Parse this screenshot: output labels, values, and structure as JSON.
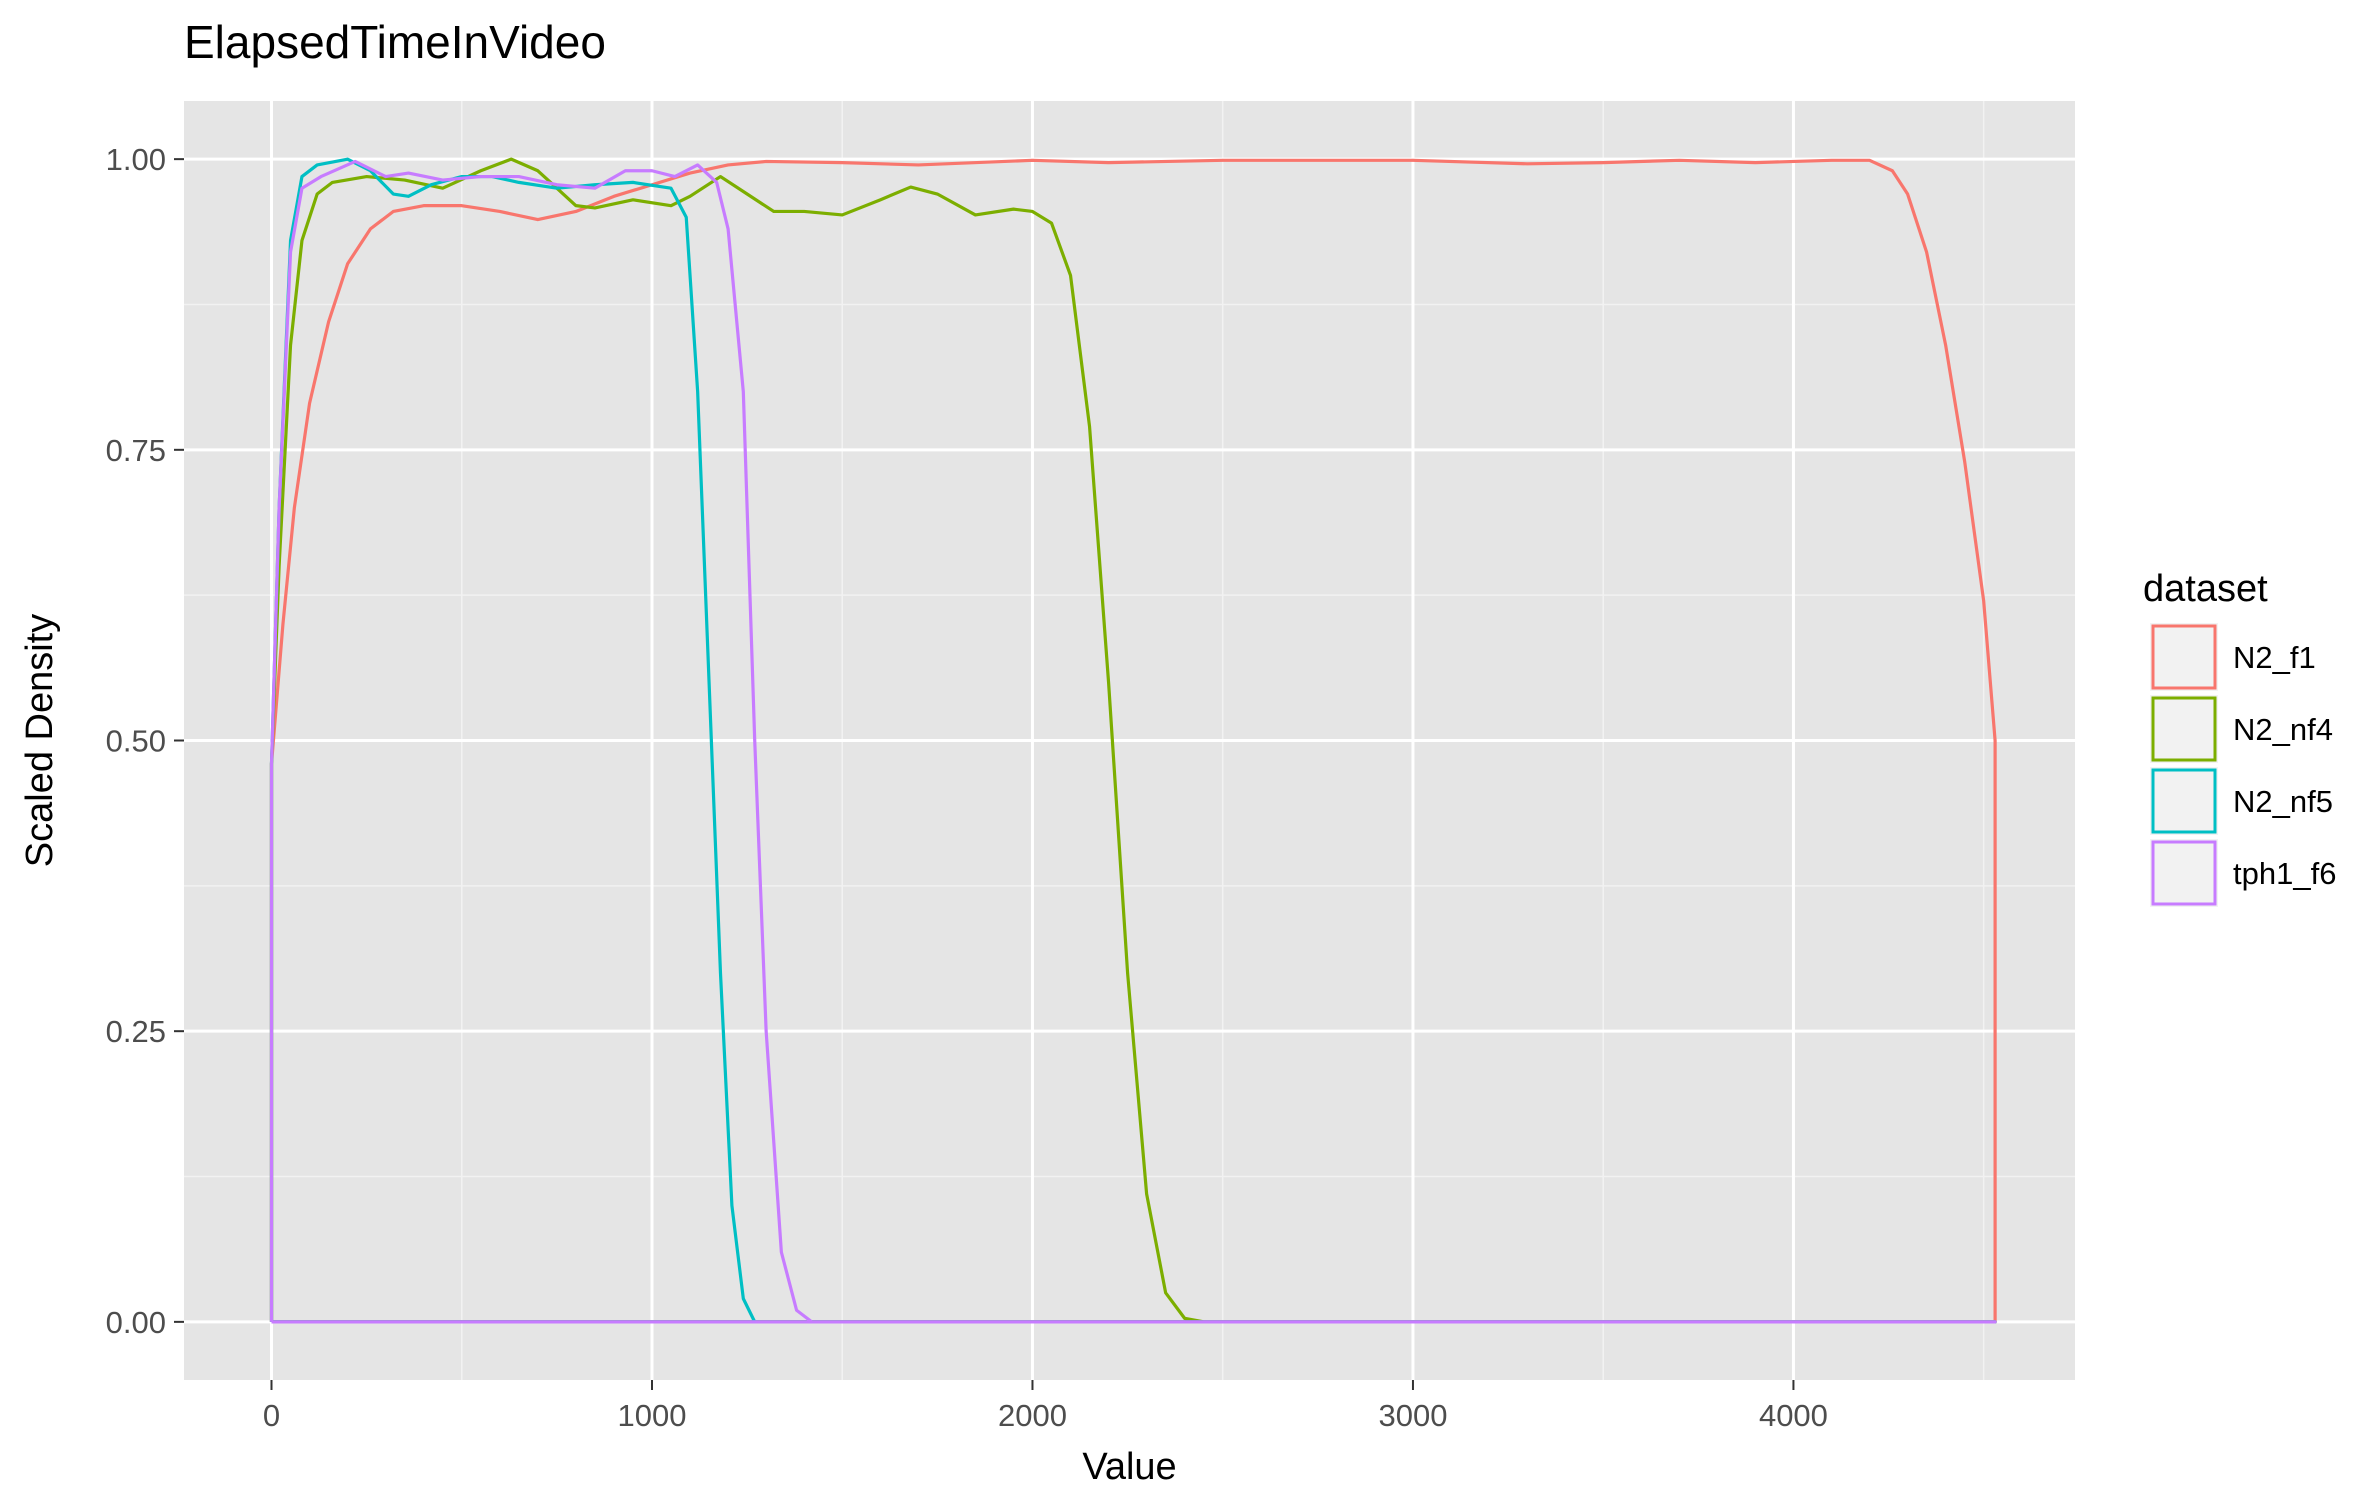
{
  "chart_data": {
    "type": "line",
    "title": "ElapsedTimeInVideo",
    "xlabel": "Value",
    "ylabel": "Scaled Density",
    "xlim": [
      -230,
      4740
    ],
    "ylim": [
      -0.05,
      1.05
    ],
    "x_ticks": [
      0,
      1000,
      2000,
      3000,
      4000
    ],
    "x_tick_labels": [
      "0",
      "1000",
      "2000",
      "3000",
      "4000"
    ],
    "y_ticks": [
      0,
      0.25,
      0.5,
      0.75,
      1.0
    ],
    "y_tick_labels": [
      "0.00",
      "0.25",
      "0.50",
      "0.75",
      "1.00"
    ],
    "grid": true,
    "legend": {
      "title": "dataset",
      "position": "right"
    },
    "series": [
      {
        "name": "N2_f1",
        "color": "#F8766D",
        "points": [
          [
            0,
            0
          ],
          [
            0,
            0.48
          ],
          [
            30,
            0.6
          ],
          [
            60,
            0.7
          ],
          [
            100,
            0.79
          ],
          [
            150,
            0.86
          ],
          [
            200,
            0.91
          ],
          [
            260,
            0.94
          ],
          [
            320,
            0.955
          ],
          [
            400,
            0.96
          ],
          [
            500,
            0.96
          ],
          [
            600,
            0.955
          ],
          [
            700,
            0.948
          ],
          [
            800,
            0.955
          ],
          [
            900,
            0.968
          ],
          [
            1000,
            0.978
          ],
          [
            1100,
            0.988
          ],
          [
            1200,
            0.995
          ],
          [
            1300,
            0.998
          ],
          [
            1500,
            0.997
          ],
          [
            1700,
            0.995
          ],
          [
            2000,
            0.999
          ],
          [
            2200,
            0.997
          ],
          [
            2500,
            0.999
          ],
          [
            3000,
            0.999
          ],
          [
            3300,
            0.996
          ],
          [
            3500,
            0.997
          ],
          [
            3700,
            0.999
          ],
          [
            3900,
            0.997
          ],
          [
            4100,
            0.999
          ],
          [
            4200,
            0.999
          ],
          [
            4260,
            0.99
          ],
          [
            4300,
            0.97
          ],
          [
            4350,
            0.92
          ],
          [
            4400,
            0.84
          ],
          [
            4450,
            0.74
          ],
          [
            4500,
            0.62
          ],
          [
            4530,
            0.5
          ],
          [
            4530,
            0
          ],
          [
            0,
            0
          ]
        ]
      },
      {
        "name": "N2_nf4",
        "color": "#7CAE00",
        "points": [
          [
            0,
            0
          ],
          [
            0,
            0.48
          ],
          [
            20,
            0.65
          ],
          [
            50,
            0.84
          ],
          [
            80,
            0.93
          ],
          [
            120,
            0.97
          ],
          [
            160,
            0.98
          ],
          [
            250,
            0.985
          ],
          [
            350,
            0.982
          ],
          [
            450,
            0.975
          ],
          [
            550,
            0.99
          ],
          [
            630,
            1.0
          ],
          [
            700,
            0.99
          ],
          [
            750,
            0.975
          ],
          [
            800,
            0.96
          ],
          [
            850,
            0.958
          ],
          [
            950,
            0.965
          ],
          [
            1050,
            0.96
          ],
          [
            1100,
            0.968
          ],
          [
            1180,
            0.985
          ],
          [
            1250,
            0.97
          ],
          [
            1320,
            0.955
          ],
          [
            1400,
            0.955
          ],
          [
            1500,
            0.952
          ],
          [
            1600,
            0.965
          ],
          [
            1680,
            0.976
          ],
          [
            1750,
            0.97
          ],
          [
            1850,
            0.952
          ],
          [
            1950,
            0.957
          ],
          [
            2000,
            0.955
          ],
          [
            2050,
            0.945
          ],
          [
            2100,
            0.9
          ],
          [
            2150,
            0.77
          ],
          [
            2200,
            0.55
          ],
          [
            2250,
            0.3
          ],
          [
            2300,
            0.11
          ],
          [
            2350,
            0.025
          ],
          [
            2400,
            0.003
          ],
          [
            2450,
            0
          ],
          [
            4530,
            0
          ],
          [
            0,
            0
          ]
        ]
      },
      {
        "name": "N2_nf5",
        "color": "#00BFC4",
        "points": [
          [
            0,
            0
          ],
          [
            0,
            0.48
          ],
          [
            20,
            0.7
          ],
          [
            50,
            0.93
          ],
          [
            80,
            0.985
          ],
          [
            120,
            0.995
          ],
          [
            200,
            1.0
          ],
          [
            260,
            0.99
          ],
          [
            320,
            0.97
          ],
          [
            360,
            0.968
          ],
          [
            420,
            0.978
          ],
          [
            500,
            0.985
          ],
          [
            580,
            0.985
          ],
          [
            650,
            0.98
          ],
          [
            750,
            0.975
          ],
          [
            850,
            0.978
          ],
          [
            950,
            0.98
          ],
          [
            1050,
            0.975
          ],
          [
            1090,
            0.95
          ],
          [
            1120,
            0.8
          ],
          [
            1150,
            0.55
          ],
          [
            1180,
            0.3
          ],
          [
            1210,
            0.1
          ],
          [
            1240,
            0.02
          ],
          [
            1270,
            0
          ],
          [
            4530,
            0
          ],
          [
            0,
            0
          ]
        ]
      },
      {
        "name": "tph1_f6",
        "color": "#C77CFF",
        "points": [
          [
            0,
            0
          ],
          [
            0,
            0.48
          ],
          [
            20,
            0.7
          ],
          [
            50,
            0.92
          ],
          [
            80,
            0.975
          ],
          [
            130,
            0.985
          ],
          [
            220,
            0.998
          ],
          [
            300,
            0.985
          ],
          [
            360,
            0.988
          ],
          [
            450,
            0.982
          ],
          [
            550,
            0.985
          ],
          [
            650,
            0.985
          ],
          [
            750,
            0.978
          ],
          [
            850,
            0.975
          ],
          [
            930,
            0.99
          ],
          [
            1000,
            0.99
          ],
          [
            1060,
            0.985
          ],
          [
            1120,
            0.995
          ],
          [
            1170,
            0.98
          ],
          [
            1200,
            0.94
          ],
          [
            1240,
            0.8
          ],
          [
            1270,
            0.5
          ],
          [
            1300,
            0.25
          ],
          [
            1340,
            0.06
          ],
          [
            1380,
            0.01
          ],
          [
            1420,
            0
          ],
          [
            4530,
            0
          ],
          [
            0,
            0
          ]
        ]
      }
    ]
  }
}
